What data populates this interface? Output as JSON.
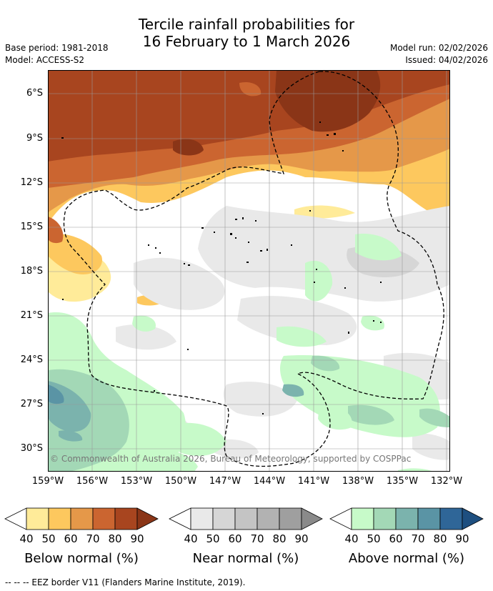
{
  "header": {
    "title_line1": "Tercile rainfall probabilities for",
    "title_line2": "16 February to 1 March 2026",
    "base_period": "Base period: 1981-2018",
    "model": "Model: ACCESS-S2",
    "model_run": "Model run: 02/02/2026",
    "issued": "Issued: 04/02/2026"
  },
  "map": {
    "copyright": "© Commonwealth of Australia 2026, Bureau of Meteorology, supported by COSPPac",
    "lat_labels": [
      "6°S",
      "9°S",
      "12°S",
      "15°S",
      "18°S",
      "21°S",
      "24°S",
      "27°S",
      "30°S"
    ],
    "lon_labels": [
      "159°W",
      "156°W",
      "153°W",
      "150°W",
      "147°W",
      "144°W",
      "141°W",
      "138°W",
      "135°W",
      "132°W"
    ]
  },
  "legend": {
    "ticks": [
      "40",
      "50",
      "60",
      "70",
      "80",
      "90"
    ],
    "below": {
      "label": "Below normal (%)",
      "colors": [
        "#ffffff",
        "#ffeb99",
        "#fdc85e",
        "#e59849",
        "#cb6530",
        "#a8451f",
        "#8a3517"
      ]
    },
    "near": {
      "label": "Near normal (%)",
      "colors": [
        "#ffffff",
        "#e9e9e9",
        "#d6d6d6",
        "#c4c4c4",
        "#b2b2b2",
        "#9f9f9f",
        "#8a8a8a"
      ]
    },
    "above": {
      "label": "Above normal (%)",
      "colors": [
        "#ffffff",
        "#c7fac9",
        "#a3d8b6",
        "#7bb3ad",
        "#5a94a5",
        "#2f6698",
        "#1e4f80"
      ]
    }
  },
  "footer": {
    "eez_note": "--  --  -- EEZ border V11 (Flanders Marine Institute, 2019)."
  }
}
